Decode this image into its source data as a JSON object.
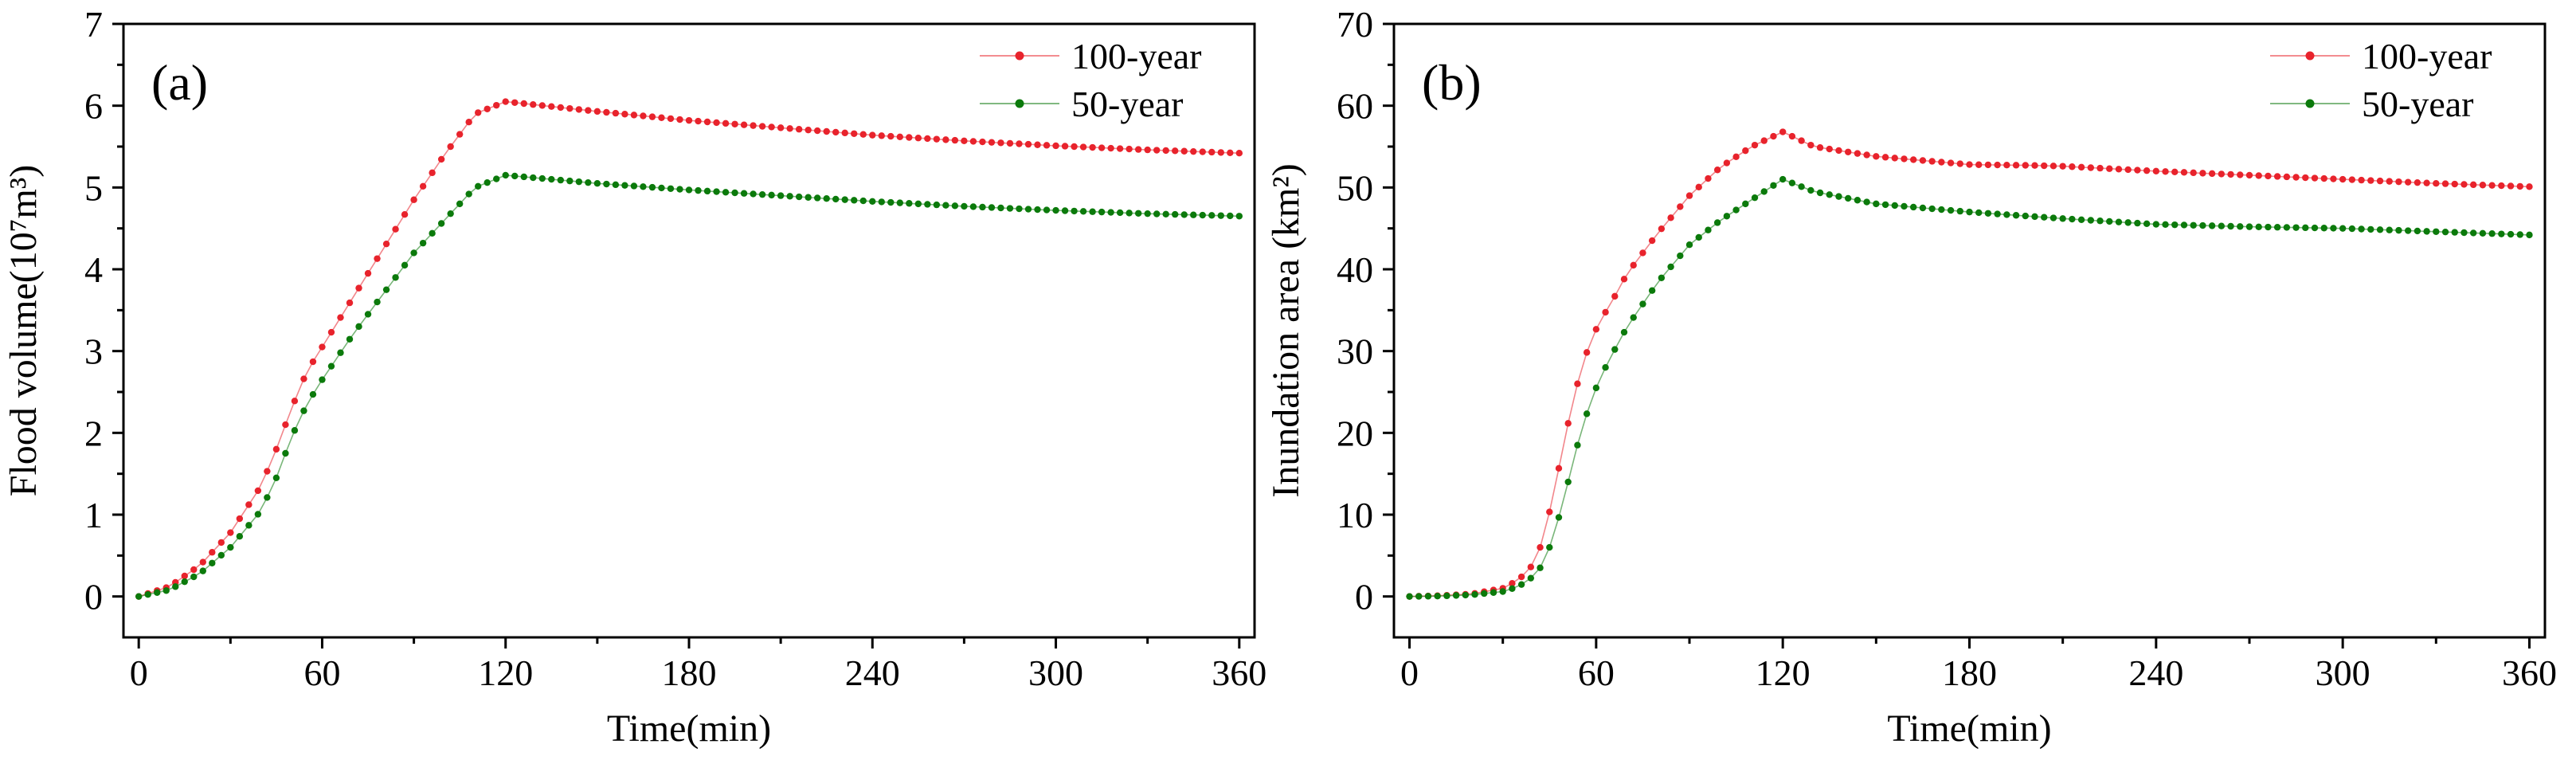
{
  "colors": {
    "series_100": "#e8232c",
    "series_50": "#0b7a0b"
  },
  "chart_data": [
    {
      "type": "line",
      "panel_label": "(a)",
      "xlabel": "Time(min)",
      "ylabel": "Flood volume(10⁷m³)",
      "xlim": [
        -5,
        365
      ],
      "ylim": [
        -0.5,
        7
      ],
      "xticks": [
        0,
        60,
        120,
        180,
        240,
        300,
        360
      ],
      "yticks": [
        0,
        1,
        2,
        3,
        4,
        5,
        6,
        7
      ],
      "legend_position": "top-right",
      "series": [
        {
          "name": "100-year",
          "color_key": "series_100",
          "x": [
            0,
            10,
            20,
            30,
            40,
            45,
            50,
            55,
            60,
            70,
            80,
            90,
            100,
            110,
            120,
            150,
            180,
            210,
            240,
            270,
            300,
            330,
            360
          ],
          "y": [
            0,
            0.12,
            0.38,
            0.78,
            1.35,
            1.8,
            2.3,
            2.75,
            3.05,
            3.65,
            4.25,
            4.85,
            5.4,
            5.9,
            6.05,
            5.93,
            5.82,
            5.73,
            5.64,
            5.57,
            5.51,
            5.46,
            5.42
          ]
        },
        {
          "name": "50-year",
          "color_key": "series_50",
          "x": [
            0,
            10,
            20,
            30,
            40,
            45,
            50,
            55,
            60,
            70,
            80,
            90,
            100,
            110,
            120,
            150,
            180,
            210,
            240,
            270,
            300,
            330,
            360
          ],
          "y": [
            0,
            0.08,
            0.28,
            0.6,
            1.05,
            1.45,
            1.95,
            2.35,
            2.65,
            3.2,
            3.7,
            4.2,
            4.6,
            5.0,
            5.15,
            5.05,
            4.97,
            4.9,
            4.83,
            4.77,
            4.72,
            4.68,
            4.65
          ]
        }
      ]
    },
    {
      "type": "line",
      "panel_label": "(b)",
      "xlabel": "Time(min)",
      "ylabel": "Inundation area (km²)",
      "xlim": [
        -5,
        365
      ],
      "ylim": [
        -5,
        70
      ],
      "xticks": [
        0,
        60,
        120,
        180,
        240,
        300,
        360
      ],
      "yticks": [
        0,
        10,
        20,
        30,
        40,
        50,
        60,
        70
      ],
      "legend_position": "top-right",
      "series": [
        {
          "name": "100-year",
          "color_key": "series_100",
          "x": [
            0,
            10,
            20,
            30,
            35,
            40,
            43,
            46,
            49,
            52,
            55,
            58,
            61,
            65,
            70,
            80,
            90,
            100,
            110,
            120,
            130,
            150,
            180,
            200,
            210,
            240,
            270,
            300,
            330,
            360
          ],
          "y": [
            0,
            0.1,
            0.3,
            1.0,
            2.0,
            4.0,
            7.0,
            12.0,
            17.5,
            23.0,
            27.5,
            31.0,
            33.5,
            36.0,
            39.5,
            44.5,
            49.0,
            52.5,
            55.0,
            56.8,
            55.0,
            53.8,
            52.8,
            52.7,
            52.6,
            52.0,
            51.5,
            51.0,
            50.5,
            50.1
          ]
        },
        {
          "name": "50-year",
          "color_key": "series_50",
          "x": [
            0,
            10,
            20,
            30,
            35,
            40,
            43,
            46,
            49,
            52,
            55,
            58,
            61,
            65,
            70,
            80,
            90,
            100,
            110,
            120,
            130,
            150,
            180,
            210,
            240,
            270,
            300,
            330,
            360
          ],
          "y": [
            0,
            0.05,
            0.2,
            0.6,
            1.2,
            2.5,
            4.0,
            7.0,
            11.0,
            15.5,
            20.0,
            23.5,
            26.5,
            29.5,
            33.0,
            38.5,
            43.0,
            46.0,
            48.5,
            51.0,
            49.5,
            48.0,
            47.0,
            46.2,
            45.5,
            45.2,
            45.0,
            44.6,
            44.2
          ]
        }
      ]
    }
  ]
}
